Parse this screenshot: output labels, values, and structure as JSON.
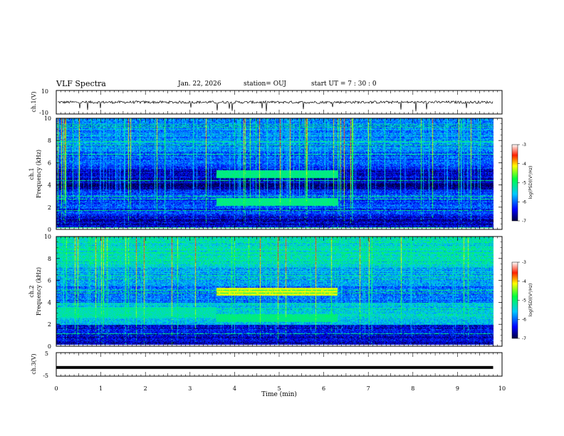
{
  "header": {
    "title": "VLF Spectra",
    "date": "Jan. 22, 2026",
    "station": "station= OUJ",
    "start": "start  UT =   7 : 30 : 0"
  },
  "chart_data": [
    {
      "type": "line",
      "panel": "channel-1-voltage",
      "ylabel": "ch.1(V)",
      "ylim": [
        -10,
        10
      ],
      "yticks": [
        "10",
        "-10"
      ],
      "series_mean": 0,
      "xlim": [
        0,
        10
      ]
    },
    {
      "type": "heatmap",
      "panel": "channel-1-spectrogram",
      "ylabel_line1": "ch.1",
      "ylabel_line2": "Frequency  (kHz)",
      "ylim": [
        0,
        10
      ],
      "yticks": [
        "0",
        "2",
        "4",
        "6",
        "8",
        "10"
      ],
      "xlim": [
        0,
        10
      ],
      "band_onset_min": 3.6,
      "band_end_min": 6.3,
      "bands_khz": [
        5.0,
        2.5
      ],
      "colorbar": {
        "label": "log(PSD)(V²/Hz)",
        "range": [
          -7,
          -3
        ],
        "ticks": [
          "-3",
          "-4",
          "-5",
          "-6",
          "-7"
        ]
      }
    },
    {
      "type": "heatmap",
      "panel": "channel-2-spectrogram",
      "ylabel_line1": "ch.2",
      "ylabel_line2": "Frequency  (kHz)",
      "ylim": [
        0,
        10
      ],
      "yticks": [
        "0",
        "2",
        "4",
        "6",
        "8",
        "10"
      ],
      "xlim": [
        0,
        10
      ],
      "band_onset_min": 3.6,
      "band_end_min": 6.3,
      "bands_khz": [
        5.0,
        2.6
      ],
      "colorbar": {
        "label": "log(PSD)(V²/Hz)",
        "range": [
          -7,
          -3
        ],
        "ticks": [
          "-3",
          "-4",
          "-5",
          "-6",
          "-7"
        ]
      }
    },
    {
      "type": "line",
      "panel": "channel-3-voltage",
      "ylabel": "ch.3(V)",
      "ylim": [
        -5,
        5
      ],
      "yticks": [
        "5",
        "-5"
      ],
      "series_mean": -1.3,
      "xlim": [
        0,
        10
      ],
      "xlabel": "Time  (min)",
      "xticks": [
        "0",
        "1",
        "2",
        "3",
        "4",
        "5",
        "6",
        "7",
        "8",
        "9",
        "10"
      ]
    }
  ],
  "colors": {
    "axis": "#000000",
    "trace": "#000000",
    "background": "#ffffff"
  }
}
